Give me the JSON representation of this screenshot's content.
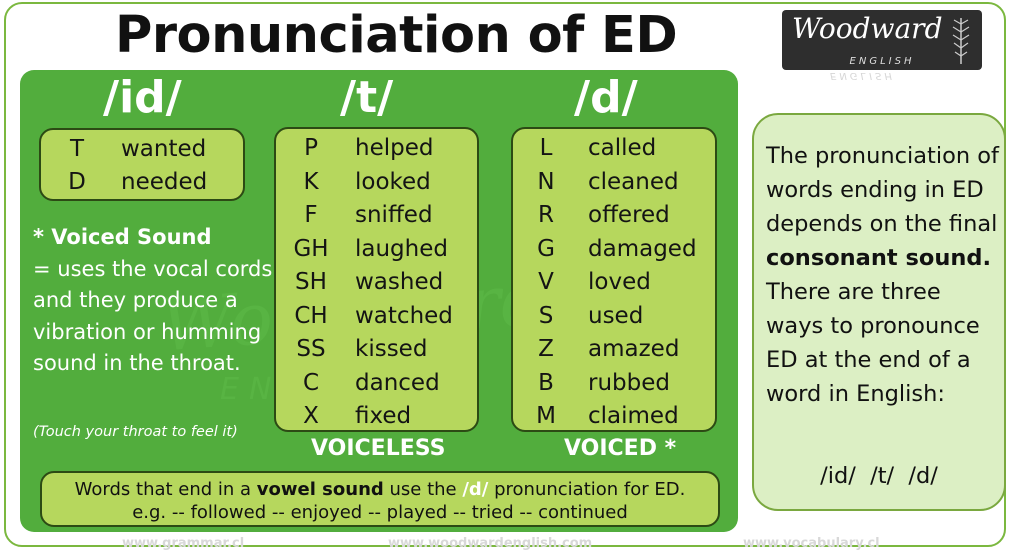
{
  "title": "Pronunciation of ED",
  "logo": {
    "main": "Woodward",
    "sub": "ENGLISH"
  },
  "columns": [
    {
      "heading": "/id/",
      "rows": [
        {
          "letter": "T",
          "word": "wanted"
        },
        {
          "letter": "D",
          "word": "needed"
        }
      ]
    },
    {
      "heading": "/t/",
      "label": "VOICELESS",
      "rows": [
        {
          "letter": "P",
          "word": "helped"
        },
        {
          "letter": "K",
          "word": "looked"
        },
        {
          "letter": "F",
          "word": "sniffed"
        },
        {
          "letter": "GH",
          "word": "laughed"
        },
        {
          "letter": "SH",
          "word": "washed"
        },
        {
          "letter": "CH",
          "word": "watched"
        },
        {
          "letter": "SS",
          "word": "kissed"
        },
        {
          "letter": "C",
          "word": "danced"
        },
        {
          "letter": "X",
          "word": "fixed"
        }
      ]
    },
    {
      "heading": "/d/",
      "label": "VOICED *",
      "rows": [
        {
          "letter": "L",
          "word": "called"
        },
        {
          "letter": "N",
          "word": "cleaned"
        },
        {
          "letter": "R",
          "word": "offered"
        },
        {
          "letter": "G",
          "word": "damaged"
        },
        {
          "letter": "V",
          "word": "loved"
        },
        {
          "letter": "S",
          "word": "used"
        },
        {
          "letter": "Z",
          "word": "amazed"
        },
        {
          "letter": "B",
          "word": "rubbed"
        },
        {
          "letter": "M",
          "word": "claimed"
        }
      ]
    }
  ],
  "voiced_note": {
    "heading": "* Voiced Sound",
    "body": "= uses the vocal cords and they produce a vibration or humming sound in the throat.",
    "hint": "(Touch your throat to feel it)"
  },
  "watermark": {
    "main": "Woodward",
    "sub": "ENGLISH"
  },
  "bottom": {
    "line1_a": "Words that end in a ",
    "line1_bold": "vowel sound",
    "line1_b": " use the ",
    "line1_hl": "/d/",
    "line1_c": " pronunciation for ED.",
    "line2": "e.g. -- followed -- enjoyed -- played -- tried -- continued"
  },
  "info": {
    "part1": "The pronunciation of words ending in ED depends on the final ",
    "bold": "consonant sound.",
    "part2": " There are three ways to pronounce ED at the end of a word in English:",
    "sounds": "/id/  /t/  /d/"
  },
  "footer": [
    "www.grammar.cl",
    "www.woodwardenglish.com",
    "www.vocabulary.cl"
  ],
  "colors": {
    "panel_green": "#52ad3d",
    "box_green": "#b6d75d",
    "info_bg": "#dcefc4",
    "border": "#7bb83f"
  }
}
